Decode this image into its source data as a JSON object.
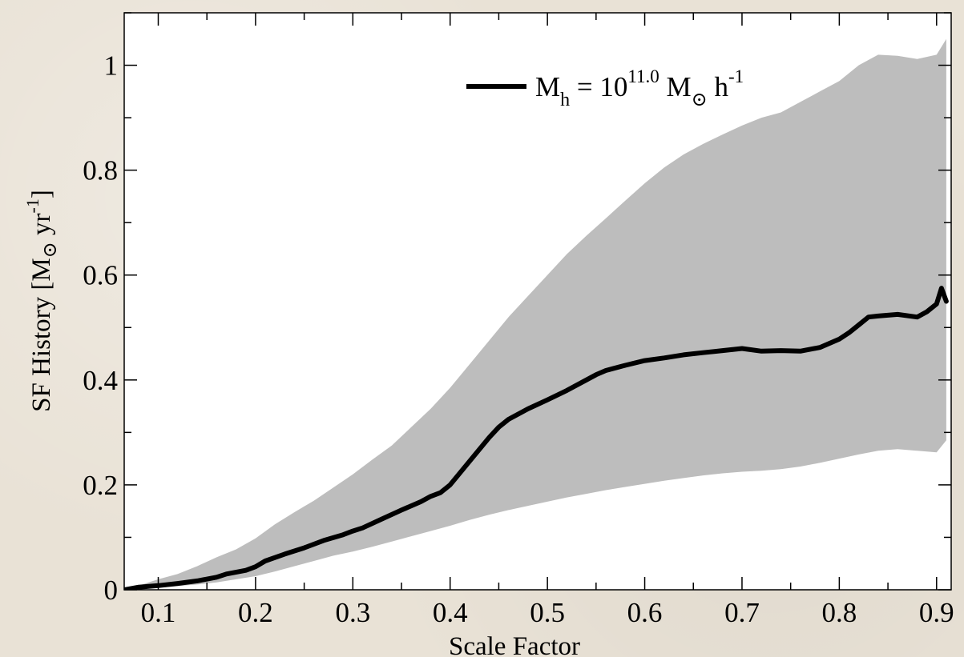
{
  "chart_data": {
    "type": "line",
    "xlabel": "Scale Factor",
    "ylabel": {
      "prefix": "SF History [M",
      "sub": "⊙",
      "middle": " yr",
      "sup": "-1",
      "suffix": "]"
    },
    "xlim": [
      0.065,
      0.915
    ],
    "ylim": [
      0,
      1.1
    ],
    "x_ticks": [
      0.1,
      0.2,
      0.3,
      0.4,
      0.5,
      0.6,
      0.7,
      0.8,
      0.9
    ],
    "x_tick_labels": [
      "0.1",
      "0.2",
      "0.3",
      "0.4",
      "0.5",
      "0.6",
      "0.7",
      "0.8",
      "0.9"
    ],
    "y_ticks": [
      0,
      0.2,
      0.4,
      0.6,
      0.8,
      1.0
    ],
    "y_tick_labels": [
      "0",
      "0.2",
      "0.4",
      "0.6",
      "0.8",
      "1"
    ],
    "grid": false,
    "legend_position": "top-right",
    "colors": {
      "line": "#000000",
      "band": "#bdbdbd",
      "plot_bg": "#ffffff"
    },
    "legend": {
      "m": "M",
      "h_sub": "h",
      "equals": " = 10",
      "exp": "11.0",
      "m2": " M",
      "sun_sub": "⊙",
      "h": " h",
      "h_sup": "-1"
    },
    "series": [
      {
        "x": [
          0.065,
          0.08,
          0.1,
          0.12,
          0.14,
          0.16,
          0.17,
          0.19,
          0.2,
          0.21,
          0.23,
          0.25,
          0.27,
          0.29,
          0.3,
          0.31,
          0.33,
          0.35,
          0.37,
          0.38,
          0.39,
          0.4,
          0.42,
          0.44,
          0.45,
          0.46,
          0.48,
          0.5,
          0.52,
          0.54,
          0.55,
          0.56,
          0.58,
          0.6,
          0.62,
          0.64,
          0.66,
          0.68,
          0.7,
          0.72,
          0.74,
          0.76,
          0.78,
          0.8,
          0.81,
          0.82,
          0.83,
          0.84,
          0.86,
          0.88,
          0.89,
          0.9,
          0.905,
          0.91
        ],
        "y": [
          0.0,
          0.005,
          0.008,
          0.012,
          0.017,
          0.024,
          0.03,
          0.037,
          0.044,
          0.055,
          0.068,
          0.08,
          0.094,
          0.105,
          0.112,
          0.118,
          0.135,
          0.152,
          0.168,
          0.178,
          0.185,
          0.2,
          0.245,
          0.29,
          0.31,
          0.325,
          0.345,
          0.362,
          0.38,
          0.4,
          0.41,
          0.418,
          0.428,
          0.437,
          0.442,
          0.448,
          0.452,
          0.456,
          0.46,
          0.455,
          0.456,
          0.455,
          0.462,
          0.478,
          0.49,
          0.505,
          0.52,
          0.522,
          0.525,
          0.52,
          0.53,
          0.545,
          0.575,
          0.55
        ]
      }
    ],
    "band": {
      "x": [
        0.065,
        0.08,
        0.1,
        0.12,
        0.14,
        0.16,
        0.18,
        0.2,
        0.22,
        0.24,
        0.26,
        0.28,
        0.3,
        0.32,
        0.34,
        0.36,
        0.38,
        0.4,
        0.42,
        0.44,
        0.46,
        0.48,
        0.5,
        0.52,
        0.54,
        0.56,
        0.58,
        0.6,
        0.62,
        0.64,
        0.66,
        0.68,
        0.7,
        0.72,
        0.74,
        0.76,
        0.78,
        0.8,
        0.82,
        0.84,
        0.86,
        0.88,
        0.9,
        0.91
      ],
      "upper": [
        0.0,
        0.008,
        0.02,
        0.03,
        0.045,
        0.062,
        0.077,
        0.098,
        0.125,
        0.148,
        0.17,
        0.195,
        0.22,
        0.248,
        0.275,
        0.31,
        0.345,
        0.385,
        0.43,
        0.475,
        0.52,
        0.56,
        0.6,
        0.64,
        0.675,
        0.708,
        0.742,
        0.775,
        0.805,
        0.83,
        0.85,
        0.868,
        0.885,
        0.9,
        0.91,
        0.93,
        0.95,
        0.97,
        1.0,
        1.02,
        1.018,
        1.012,
        1.02,
        1.05
      ],
      "lower": [
        0.0,
        0.002,
        0.004,
        0.007,
        0.01,
        0.014,
        0.02,
        0.026,
        0.035,
        0.045,
        0.055,
        0.065,
        0.073,
        0.082,
        0.092,
        0.102,
        0.112,
        0.122,
        0.133,
        0.143,
        0.152,
        0.16,
        0.168,
        0.176,
        0.183,
        0.19,
        0.196,
        0.202,
        0.208,
        0.213,
        0.218,
        0.222,
        0.225,
        0.227,
        0.23,
        0.235,
        0.242,
        0.25,
        0.258,
        0.265,
        0.268,
        0.265,
        0.262,
        0.285
      ]
    }
  }
}
